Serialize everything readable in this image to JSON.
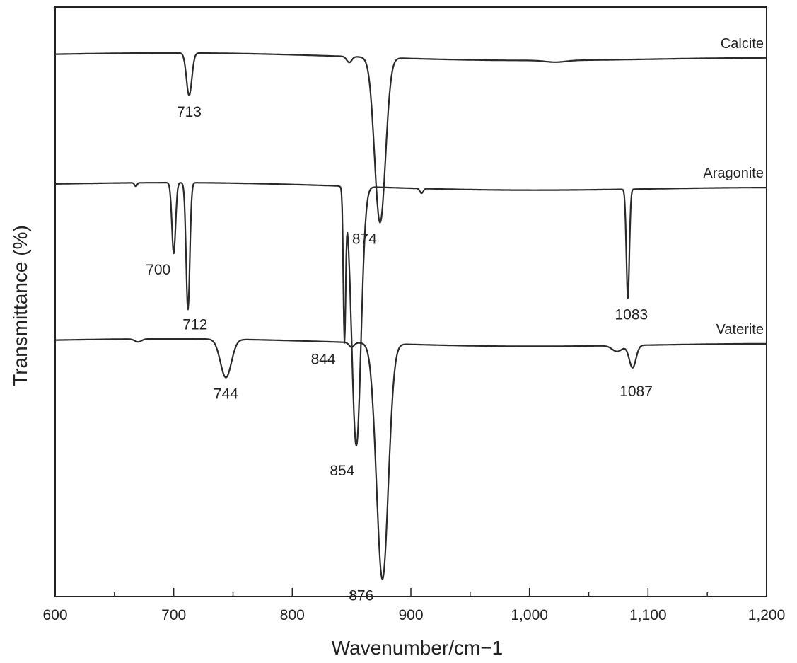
{
  "chart_data": {
    "type": "line",
    "title": "",
    "xlabel": "Wavenumber/cm−1",
    "ylabel": "Transmittance (%)",
    "xlim": [
      600,
      1200
    ],
    "x_ticks": [
      600,
      700,
      800,
      900,
      1000,
      1100,
      1200
    ],
    "x_tick_labels": [
      "600",
      "700",
      "800",
      "900",
      "1,000",
      "1,100",
      "1,200"
    ],
    "y_ticks_shown": false,
    "grid": false,
    "legend": "inline labels at right end of each trace",
    "colors": {
      "trace": "#2a2a2a",
      "axis": "#222222",
      "background": "#ffffff"
    },
    "series": [
      {
        "name": "Calcite",
        "baseline": 0.92,
        "peaks": [
          {
            "x": 713,
            "depth": 0.072,
            "width": 3.2,
            "label": "713"
          },
          {
            "x": 848,
            "depth": 0.01,
            "width": 3,
            "label": ""
          },
          {
            "x": 874,
            "depth": 0.28,
            "width": 6.5,
            "label": "874"
          },
          {
            "x": 1022,
            "depth": 0.003,
            "width": 12,
            "label": ""
          }
        ]
      },
      {
        "name": "Aragonite",
        "baseline": 0.7,
        "peaks": [
          {
            "x": 668,
            "depth": 0.006,
            "width": 1.5,
            "label": ""
          },
          {
            "x": 700,
            "depth": 0.12,
            "width": 2.2,
            "label": "700"
          },
          {
            "x": 712,
            "depth": 0.215,
            "width": 2.2,
            "label": "712"
          },
          {
            "x": 844,
            "depth": 0.25,
            "width": 1.4,
            "label": "844"
          },
          {
            "x": 854,
            "depth": 0.44,
            "width": 5.5,
            "label": "854"
          },
          {
            "x": 909,
            "depth": 0.008,
            "width": 2,
            "label": ""
          },
          {
            "x": 1083,
            "depth": 0.185,
            "width": 1.8,
            "label": "1083"
          }
        ]
      },
      {
        "name": "Vaterite",
        "baseline": 0.435,
        "peaks": [
          {
            "x": 670,
            "depth": 0.005,
            "width": 4,
            "label": ""
          },
          {
            "x": 744,
            "depth": 0.065,
            "width": 6.5,
            "label": "744"
          },
          {
            "x": 850,
            "depth": 0.008,
            "width": 3,
            "label": ""
          },
          {
            "x": 876,
            "depth": 0.4,
            "width": 7,
            "label": "876"
          },
          {
            "x": 1074,
            "depth": 0.01,
            "width": 6,
            "label": ""
          },
          {
            "x": 1087,
            "depth": 0.038,
            "width": 4,
            "label": "1087"
          }
        ]
      }
    ]
  }
}
